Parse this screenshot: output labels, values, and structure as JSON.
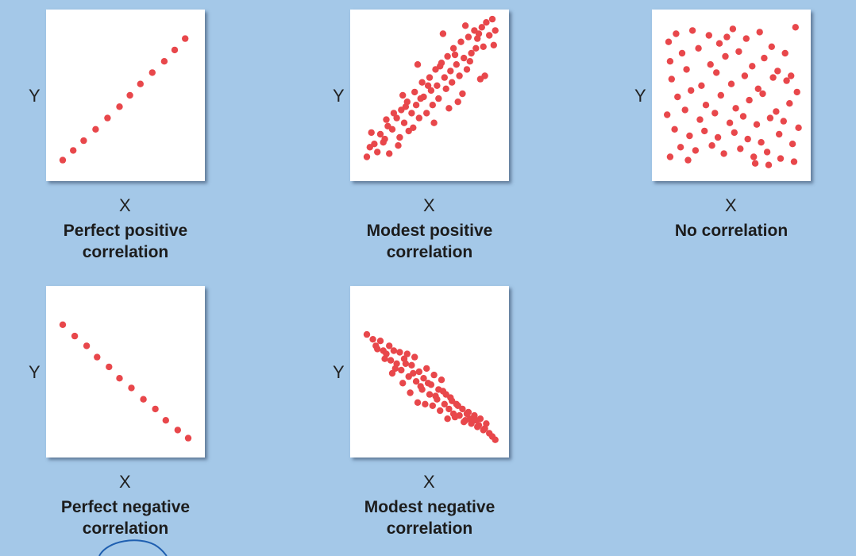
{
  "colors": {
    "background": "#a4c8e8",
    "plot_bg": "#ffffff",
    "point": "#e8474b"
  },
  "chart_data": [
    {
      "type": "scatter",
      "title": "",
      "caption": [
        "Perfect positive",
        "correlation"
      ],
      "xlabel": "X",
      "ylabel": "Y",
      "xlim": [
        0,
        10
      ],
      "ylim": [
        0,
        10
      ],
      "x": [
        0.8,
        1.5,
        2.2,
        3.0,
        3.8,
        4.6,
        5.3,
        6.0,
        6.8,
        7.6,
        8.3,
        9.0
      ],
      "y": [
        1.0,
        1.6,
        2.2,
        2.9,
        3.6,
        4.3,
        5.0,
        5.7,
        6.4,
        7.1,
        7.8,
        8.5
      ]
    },
    {
      "type": "scatter",
      "title": "",
      "caption": [
        "Modest positive",
        "correlation"
      ],
      "xlabel": "X",
      "ylabel": "Y",
      "xlim": [
        0,
        10
      ],
      "ylim": [
        0,
        10
      ],
      "x": [
        0.8,
        1.0,
        1.3,
        1.5,
        1.7,
        2.0,
        2.2,
        2.3,
        2.5,
        2.8,
        3.0,
        3.1,
        3.3,
        3.5,
        3.6,
        3.8,
        4.0,
        4.1,
        4.3,
        4.5,
        4.6,
        4.8,
        5.0,
        5.1,
        5.2,
        5.4,
        5.5,
        5.6,
        5.8,
        6.0,
        6.1,
        6.2,
        6.4,
        6.5,
        6.6,
        6.8,
        7.0,
        7.1,
        7.3,
        7.5,
        7.6,
        7.8,
        8.0,
        8.1,
        8.3,
        8.5,
        8.6,
        8.8,
        9.0,
        9.2,
        9.4,
        1.1,
        1.9,
        2.6,
        2.9,
        3.4,
        3.9,
        4.4,
        4.9,
        5.3,
        5.7,
        6.3,
        6.7,
        7.2,
        7.7,
        8.2,
        8.7,
        9.3,
        4.2,
        5.9,
        7.4,
        3.2,
        6.9,
        8.4,
        2.1
      ],
      "y": [
        1.2,
        1.8,
        2.0,
        1.5,
        2.6,
        2.3,
        3.1,
        1.4,
        2.9,
        3.6,
        2.4,
        4.1,
        3.3,
        4.6,
        2.8,
        3.9,
        5.2,
        4.4,
        3.6,
        5.8,
        4.9,
        3.9,
        6.1,
        5.3,
        4.4,
        6.6,
        5.6,
        4.8,
        7.0,
        6.1,
        5.4,
        7.4,
        6.5,
        5.8,
        7.9,
        6.9,
        6.2,
        8.3,
        7.3,
        6.6,
        8.6,
        7.6,
        9.0,
        7.9,
        8.8,
        9.2,
        8.0,
        9.5,
        8.7,
        9.7,
        9.0,
        2.7,
        2.1,
        3.9,
        1.9,
        4.3,
        3.0,
        4.8,
        5.6,
        3.3,
        6.8,
        4.2,
        7.5,
        5.1,
        7.1,
        8.5,
        6.2,
        8.1,
        6.9,
        8.8,
        9.3,
        5.0,
        4.6,
        6.0,
        3.5
      ]
    },
    {
      "type": "scatter",
      "title": "",
      "caption": [
        "No correlation"
      ],
      "xlabel": "X",
      "ylabel": "Y",
      "xlim": [
        0,
        10
      ],
      "ylim": [
        0,
        10
      ],
      "x": [
        0.8,
        1.3,
        2.4,
        3.5,
        4.2,
        5.1,
        6.0,
        6.9,
        7.7,
        8.6,
        9.3,
        0.9,
        1.7,
        2.8,
        3.6,
        4.6,
        5.5,
        6.4,
        7.2,
        8.1,
        9.0,
        1.0,
        2.0,
        3.0,
        4.0,
        5.0,
        5.9,
        6.8,
        7.8,
        8.7,
        9.4,
        1.4,
        2.3,
        3.3,
        4.3,
        5.3,
        6.2,
        7.1,
        8.0,
        8.9,
        0.7,
        1.9,
        2.9,
        3.9,
        4.9,
        5.8,
        6.7,
        7.6,
        8.5,
        9.5,
        1.2,
        2.2,
        3.2,
        4.1,
        5.2,
        6.1,
        7.0,
        8.2,
        9.1,
        1.6,
        2.6,
        3.7,
        4.5,
        5.6,
        6.5,
        7.4,
        8.3,
        9.2,
        2.1,
        6.6,
        7.5,
        4.7,
        0.9
      ],
      "y": [
        8.3,
        8.8,
        9.0,
        8.7,
        8.2,
        9.1,
        8.5,
        8.9,
        8.0,
        7.6,
        9.2,
        7.1,
        7.6,
        7.9,
        6.9,
        7.4,
        7.7,
        6.8,
        7.3,
        6.5,
        6.2,
        6.0,
        6.6,
        5.6,
        6.4,
        5.7,
        6.2,
        5.4,
        6.1,
        5.9,
        5.2,
        4.9,
        5.3,
        4.4,
        5.0,
        4.2,
        4.7,
        5.1,
        4.0,
        4.5,
        3.8,
        4.1,
        3.5,
        3.9,
        3.3,
        3.7,
        3.2,
        3.6,
        3.4,
        3.0,
        2.9,
        2.5,
        2.8,
        2.4,
        2.7,
        2.3,
        2.1,
        2.6,
        2.0,
        1.8,
        1.6,
        1.9,
        1.4,
        1.7,
        1.2,
        1.5,
        1.1,
        0.9,
        1.0,
        0.8,
        0.7,
        8.6,
        1.2
      ]
    },
    {
      "type": "scatter",
      "title": "",
      "caption": [
        "Perfect negative",
        "correlation"
      ],
      "xlabel": "X",
      "ylabel": "Y",
      "xlim": [
        0,
        10
      ],
      "ylim": [
        0,
        10
      ],
      "x": [
        0.8,
        1.6,
        2.4,
        3.1,
        3.9,
        4.6,
        5.4,
        6.2,
        7.0,
        7.7,
        8.5,
        9.2
      ],
      "y": [
        7.9,
        7.2,
        6.6,
        5.9,
        5.3,
        4.6,
        4.0,
        3.3,
        2.7,
        2.0,
        1.4,
        0.9
      ]
    },
    {
      "type": "scatter",
      "title": "",
      "caption": [
        "Modest negative",
        "correlation"
      ],
      "xlabel": "X",
      "ylabel": "Y",
      "xlim": [
        0,
        10
      ],
      "ylim": [
        0,
        10
      ],
      "x": [
        0.8,
        1.2,
        1.4,
        1.7,
        1.9,
        2.1,
        2.3,
        2.4,
        2.6,
        2.8,
        3.0,
        3.1,
        3.3,
        3.5,
        3.6,
        3.8,
        4.0,
        4.1,
        4.3,
        4.5,
        4.6,
        4.8,
        5.0,
        5.1,
        5.3,
        5.5,
        5.6,
        5.8,
        6.0,
        6.1,
        6.3,
        6.5,
        6.6,
        6.8,
        7.0,
        7.2,
        7.4,
        7.6,
        7.8,
        8.0,
        8.2,
        8.4,
        8.6,
        8.8,
        9.0,
        9.2,
        1.5,
        2.0,
        2.7,
        3.4,
        3.9,
        4.4,
        4.9,
        5.4,
        5.9,
        6.4,
        6.9,
        7.5,
        8.1,
        8.7,
        3.2,
        4.2,
        5.2,
        6.2,
        7.3,
        2.5,
        3.7,
        4.7,
        5.7,
        6.7,
        7.7,
        8.3,
        9.4
      ],
      "y": [
        7.3,
        7.0,
        6.6,
        6.9,
        6.3,
        6.1,
        6.6,
        5.7,
        6.3,
        5.5,
        6.2,
        5.1,
        5.8,
        6.1,
        4.7,
        5.4,
        5.9,
        4.4,
        5.0,
        3.9,
        4.6,
        5.2,
        3.6,
        4.2,
        4.8,
        3.3,
        3.9,
        4.5,
        3.0,
        3.6,
        2.7,
        3.2,
        2.4,
        3.0,
        2.3,
        2.7,
        2.0,
        2.5,
        1.8,
        2.3,
        1.6,
        2.1,
        1.4,
        1.8,
        1.2,
        1.0,
        6.4,
        5.8,
        5.2,
        5.5,
        4.9,
        4.1,
        4.3,
        3.5,
        3.8,
        3.4,
        2.9,
        2.4,
        2.0,
        1.5,
        4.3,
        3.1,
        2.9,
        2.1,
        1.9,
        4.9,
        3.7,
        3.0,
        2.6,
        2.2,
        2.1,
        1.7,
        0.8
      ]
    }
  ]
}
